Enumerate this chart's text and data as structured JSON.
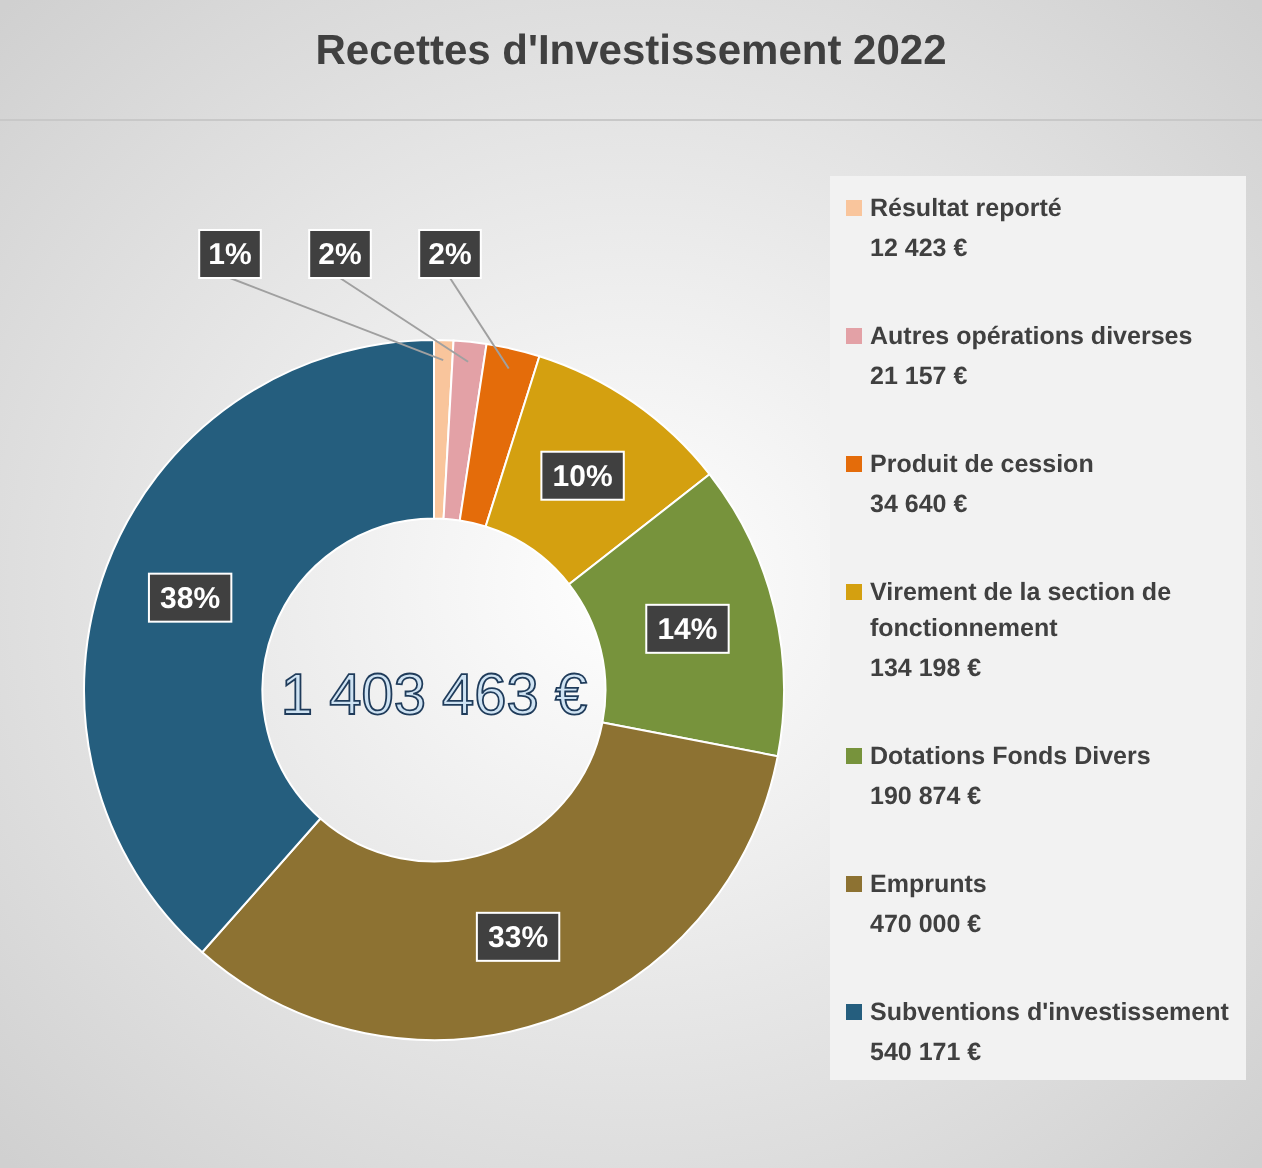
{
  "chart_data": {
    "type": "donut",
    "title": "Recettes d'Investissement 2022",
    "categories": [
      "Résultat reporté",
      "Autres opérations diverses",
      "Produit de cession",
      "Virement de la section de fonctionnement",
      "Dotations Fonds Divers",
      "Emprunts",
      "Subventions d'investissement"
    ],
    "values": [
      0.89,
      1.51,
      2.47,
      9.56,
      13.6,
      33.49,
      38.48
    ],
    "colors": [
      "#f9c59c",
      "#e3a1a6",
      "#e46c0a",
      "#d4a010",
      "#77933c",
      "#8d7232",
      "#255e7e"
    ],
    "value_labels": [
      "1%",
      "2%",
      "2%",
      "10%",
      "14%",
      "33%",
      "38%"
    ],
    "annotations": [
      "1 403 463 €",
      "12 423 €",
      "21 157 €",
      "34 640 €",
      "134 198 €",
      "190 874 €",
      "470 000 €",
      "540 171 €"
    ],
    "legend": "right"
  }
}
